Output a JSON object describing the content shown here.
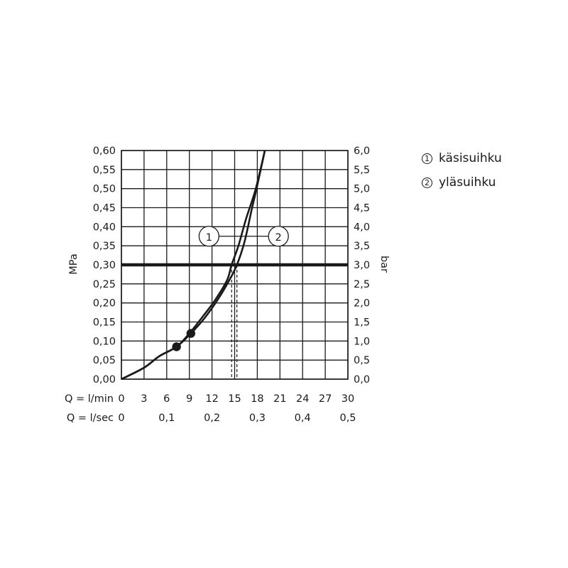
{
  "chart_data": {
    "type": "line",
    "left_axis": {
      "label": "MPa",
      "ylim": [
        0,
        0.6
      ],
      "ticks": [
        "0,00",
        "0,05",
        "0,10",
        "0,15",
        "0,20",
        "0,25",
        "0,30",
        "0,35",
        "0,40",
        "0,45",
        "0,50",
        "0,55",
        "0,60"
      ]
    },
    "right_axis": {
      "label": "bar",
      "ylim": [
        0,
        6.0
      ],
      "ticks": [
        "0,0",
        "0,5",
        "1,0",
        "1,5",
        "2,0",
        "2,5",
        "3,0",
        "3,5",
        "4,0",
        "4,5",
        "5,0",
        "5,5",
        "6,0"
      ]
    },
    "x_axis_lmin": {
      "label": "Q = l/min",
      "xlim": [
        0,
        30
      ],
      "ticks": [
        "0",
        "3",
        "6",
        "9",
        "12",
        "15",
        "18",
        "21",
        "24",
        "27",
        "30"
      ]
    },
    "x_axis_lsec": {
      "label": "Q = l/sec",
      "ticks": [
        "0",
        "0,1",
        "0,2",
        "0,3",
        "0,4",
        "0,5"
      ]
    },
    "grid": true,
    "reference_line": {
      "y": 0.3
    },
    "series": [
      {
        "name": "käsisuihku",
        "marker": "1",
        "points": [
          [
            0,
            0
          ],
          [
            3,
            0.03
          ],
          [
            5,
            0.06
          ],
          [
            7.3,
            0.085
          ],
          [
            9,
            0.12
          ],
          [
            11,
            0.17
          ],
          [
            12.5,
            0.21
          ],
          [
            14,
            0.26
          ],
          [
            14.6,
            0.3
          ],
          [
            15.5,
            0.35
          ],
          [
            16.5,
            0.42
          ],
          [
            17.8,
            0.5
          ],
          [
            19,
            0.6
          ]
        ],
        "operating_point": [
          7.3,
          0.085
        ],
        "flow_at_ref": 14.6
      },
      {
        "name": "yläsuihku",
        "marker": "2",
        "points": [
          [
            0,
            0
          ],
          [
            3,
            0.03
          ],
          [
            5,
            0.06
          ],
          [
            7.3,
            0.085
          ],
          [
            9.2,
            0.12
          ],
          [
            11,
            0.16
          ],
          [
            12.8,
            0.21
          ],
          [
            14.3,
            0.26
          ],
          [
            15.3,
            0.3
          ],
          [
            16.3,
            0.36
          ],
          [
            17.2,
            0.44
          ],
          [
            17.9,
            0.5
          ],
          [
            19,
            0.6
          ]
        ],
        "operating_point": [
          9.2,
          0.12
        ],
        "flow_at_ref": 15.3
      }
    ],
    "annotations": [
      {
        "text": "1",
        "x": 11.6,
        "y": 0.375
      },
      {
        "text": "2",
        "x": 20.8,
        "y": 0.375
      }
    ]
  },
  "legend": [
    {
      "marker": "1",
      "label": "käsisuihku"
    },
    {
      "marker": "2",
      "label": "yläsuihku"
    }
  ],
  "colors": {
    "line": "#1a1a1a",
    "background": "#ffffff"
  }
}
